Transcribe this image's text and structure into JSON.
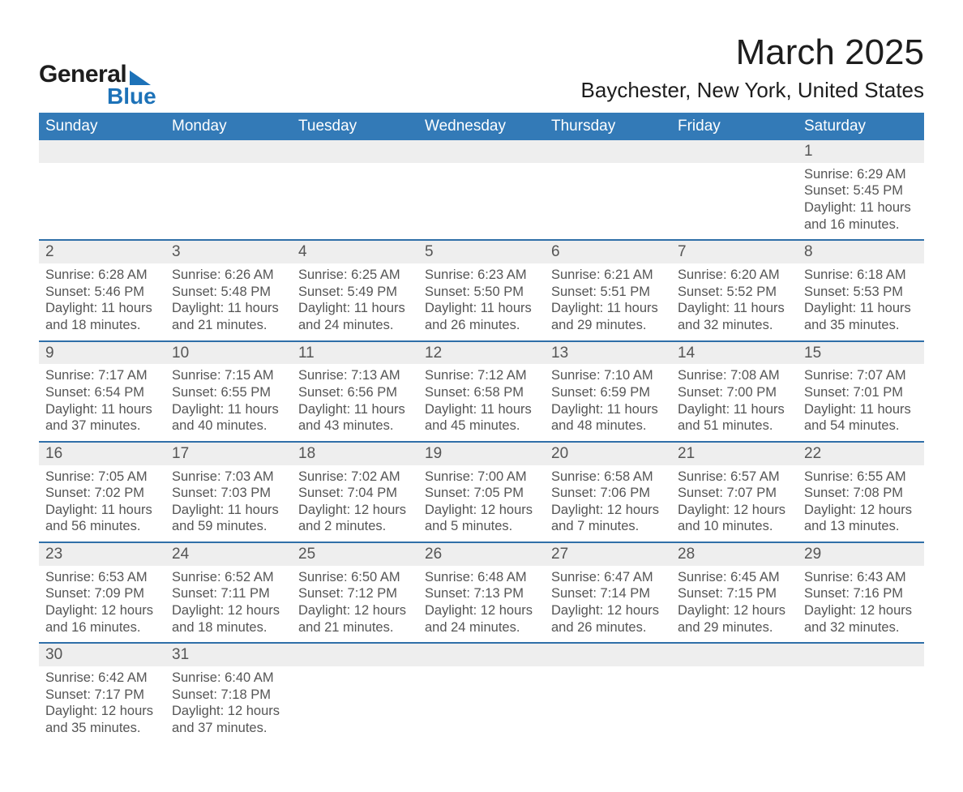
{
  "logo": {
    "word1": "General",
    "word2": "Blue"
  },
  "title": "March 2025",
  "location": "Baychester, New York, United States",
  "colors": {
    "header_bg": "#337ab7",
    "header_text": "#ffffff",
    "row_grey": "#eeeeee",
    "divider_blue": "#2f6fa8",
    "body_text": "#555555",
    "logo_blue": "#1d72b8"
  },
  "daysOfWeek": [
    "Sunday",
    "Monday",
    "Tuesday",
    "Wednesday",
    "Thursday",
    "Friday",
    "Saturday"
  ],
  "weeks": [
    [
      null,
      null,
      null,
      null,
      null,
      null,
      {
        "n": "1",
        "sunrise": "Sunrise: 6:29 AM",
        "sunset": "Sunset: 5:45 PM",
        "dl1": "Daylight: 11 hours",
        "dl2": "and 16 minutes."
      }
    ],
    [
      {
        "n": "2",
        "sunrise": "Sunrise: 6:28 AM",
        "sunset": "Sunset: 5:46 PM",
        "dl1": "Daylight: 11 hours",
        "dl2": "and 18 minutes."
      },
      {
        "n": "3",
        "sunrise": "Sunrise: 6:26 AM",
        "sunset": "Sunset: 5:48 PM",
        "dl1": "Daylight: 11 hours",
        "dl2": "and 21 minutes."
      },
      {
        "n": "4",
        "sunrise": "Sunrise: 6:25 AM",
        "sunset": "Sunset: 5:49 PM",
        "dl1": "Daylight: 11 hours",
        "dl2": "and 24 minutes."
      },
      {
        "n": "5",
        "sunrise": "Sunrise: 6:23 AM",
        "sunset": "Sunset: 5:50 PM",
        "dl1": "Daylight: 11 hours",
        "dl2": "and 26 minutes."
      },
      {
        "n": "6",
        "sunrise": "Sunrise: 6:21 AM",
        "sunset": "Sunset: 5:51 PM",
        "dl1": "Daylight: 11 hours",
        "dl2": "and 29 minutes."
      },
      {
        "n": "7",
        "sunrise": "Sunrise: 6:20 AM",
        "sunset": "Sunset: 5:52 PM",
        "dl1": "Daylight: 11 hours",
        "dl2": "and 32 minutes."
      },
      {
        "n": "8",
        "sunrise": "Sunrise: 6:18 AM",
        "sunset": "Sunset: 5:53 PM",
        "dl1": "Daylight: 11 hours",
        "dl2": "and 35 minutes."
      }
    ],
    [
      {
        "n": "9",
        "sunrise": "Sunrise: 7:17 AM",
        "sunset": "Sunset: 6:54 PM",
        "dl1": "Daylight: 11 hours",
        "dl2": "and 37 minutes."
      },
      {
        "n": "10",
        "sunrise": "Sunrise: 7:15 AM",
        "sunset": "Sunset: 6:55 PM",
        "dl1": "Daylight: 11 hours",
        "dl2": "and 40 minutes."
      },
      {
        "n": "11",
        "sunrise": "Sunrise: 7:13 AM",
        "sunset": "Sunset: 6:56 PM",
        "dl1": "Daylight: 11 hours",
        "dl2": "and 43 minutes."
      },
      {
        "n": "12",
        "sunrise": "Sunrise: 7:12 AM",
        "sunset": "Sunset: 6:58 PM",
        "dl1": "Daylight: 11 hours",
        "dl2": "and 45 minutes."
      },
      {
        "n": "13",
        "sunrise": "Sunrise: 7:10 AM",
        "sunset": "Sunset: 6:59 PM",
        "dl1": "Daylight: 11 hours",
        "dl2": "and 48 minutes."
      },
      {
        "n": "14",
        "sunrise": "Sunrise: 7:08 AM",
        "sunset": "Sunset: 7:00 PM",
        "dl1": "Daylight: 11 hours",
        "dl2": "and 51 minutes."
      },
      {
        "n": "15",
        "sunrise": "Sunrise: 7:07 AM",
        "sunset": "Sunset: 7:01 PM",
        "dl1": "Daylight: 11 hours",
        "dl2": "and 54 minutes."
      }
    ],
    [
      {
        "n": "16",
        "sunrise": "Sunrise: 7:05 AM",
        "sunset": "Sunset: 7:02 PM",
        "dl1": "Daylight: 11 hours",
        "dl2": "and 56 minutes."
      },
      {
        "n": "17",
        "sunrise": "Sunrise: 7:03 AM",
        "sunset": "Sunset: 7:03 PM",
        "dl1": "Daylight: 11 hours",
        "dl2": "and 59 minutes."
      },
      {
        "n": "18",
        "sunrise": "Sunrise: 7:02 AM",
        "sunset": "Sunset: 7:04 PM",
        "dl1": "Daylight: 12 hours",
        "dl2": "and 2 minutes."
      },
      {
        "n": "19",
        "sunrise": "Sunrise: 7:00 AM",
        "sunset": "Sunset: 7:05 PM",
        "dl1": "Daylight: 12 hours",
        "dl2": "and 5 minutes."
      },
      {
        "n": "20",
        "sunrise": "Sunrise: 6:58 AM",
        "sunset": "Sunset: 7:06 PM",
        "dl1": "Daylight: 12 hours",
        "dl2": "and 7 minutes."
      },
      {
        "n": "21",
        "sunrise": "Sunrise: 6:57 AM",
        "sunset": "Sunset: 7:07 PM",
        "dl1": "Daylight: 12 hours",
        "dl2": "and 10 minutes."
      },
      {
        "n": "22",
        "sunrise": "Sunrise: 6:55 AM",
        "sunset": "Sunset: 7:08 PM",
        "dl1": "Daylight: 12 hours",
        "dl2": "and 13 minutes."
      }
    ],
    [
      {
        "n": "23",
        "sunrise": "Sunrise: 6:53 AM",
        "sunset": "Sunset: 7:09 PM",
        "dl1": "Daylight: 12 hours",
        "dl2": "and 16 minutes."
      },
      {
        "n": "24",
        "sunrise": "Sunrise: 6:52 AM",
        "sunset": "Sunset: 7:11 PM",
        "dl1": "Daylight: 12 hours",
        "dl2": "and 18 minutes."
      },
      {
        "n": "25",
        "sunrise": "Sunrise: 6:50 AM",
        "sunset": "Sunset: 7:12 PM",
        "dl1": "Daylight: 12 hours",
        "dl2": "and 21 minutes."
      },
      {
        "n": "26",
        "sunrise": "Sunrise: 6:48 AM",
        "sunset": "Sunset: 7:13 PM",
        "dl1": "Daylight: 12 hours",
        "dl2": "and 24 minutes."
      },
      {
        "n": "27",
        "sunrise": "Sunrise: 6:47 AM",
        "sunset": "Sunset: 7:14 PM",
        "dl1": "Daylight: 12 hours",
        "dl2": "and 26 minutes."
      },
      {
        "n": "28",
        "sunrise": "Sunrise: 6:45 AM",
        "sunset": "Sunset: 7:15 PM",
        "dl1": "Daylight: 12 hours",
        "dl2": "and 29 minutes."
      },
      {
        "n": "29",
        "sunrise": "Sunrise: 6:43 AM",
        "sunset": "Sunset: 7:16 PM",
        "dl1": "Daylight: 12 hours",
        "dl2": "and 32 minutes."
      }
    ],
    [
      {
        "n": "30",
        "sunrise": "Sunrise: 6:42 AM",
        "sunset": "Sunset: 7:17 PM",
        "dl1": "Daylight: 12 hours",
        "dl2": "and 35 minutes."
      },
      {
        "n": "31",
        "sunrise": "Sunrise: 6:40 AM",
        "sunset": "Sunset: 7:18 PM",
        "dl1": "Daylight: 12 hours",
        "dl2": "and 37 minutes."
      },
      null,
      null,
      null,
      null,
      null
    ]
  ]
}
